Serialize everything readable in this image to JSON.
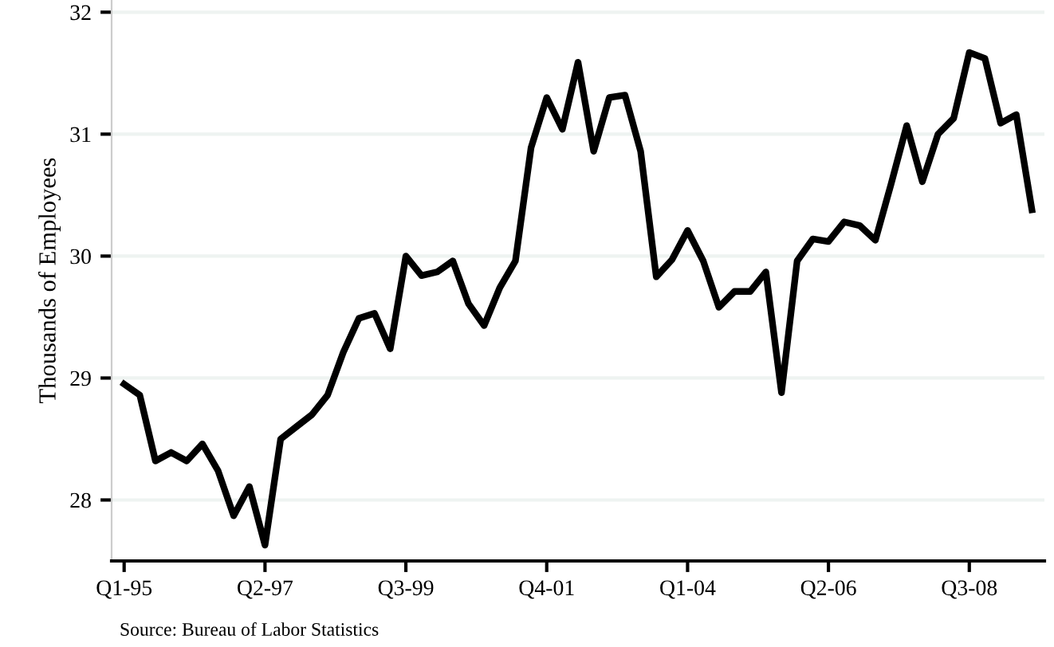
{
  "chart_data": {
    "type": "line",
    "ylabel": "Thousands of Employees",
    "categories": [
      "Q1-95",
      null,
      null,
      null,
      null,
      null,
      null,
      null,
      null,
      "Q2-97",
      null,
      null,
      null,
      null,
      null,
      null,
      null,
      null,
      "Q3-99",
      null,
      null,
      null,
      null,
      null,
      null,
      null,
      null,
      "Q4-01",
      null,
      null,
      null,
      null,
      null,
      null,
      null,
      null,
      "Q1-04",
      null,
      null,
      null,
      null,
      null,
      null,
      null,
      null,
      "Q2-06",
      null,
      null,
      null,
      null,
      null,
      null,
      null,
      null,
      "Q3-08",
      null,
      null,
      null,
      null
    ],
    "series": [
      {
        "color": "#000000",
        "values": [
          28.95,
          28.86,
          28.32,
          28.39,
          28.32,
          28.46,
          28.24,
          27.87,
          28.11,
          27.63,
          28.5,
          28.6,
          28.7,
          28.86,
          29.21,
          29.49,
          29.53,
          29.24,
          30.0,
          29.84,
          29.87,
          29.96,
          29.61,
          29.43,
          29.74,
          29.96,
          30.89,
          31.3,
          31.04,
          31.59,
          30.86,
          31.3,
          31.32,
          30.86,
          29.83,
          29.97,
          30.21,
          29.96,
          29.58,
          29.71,
          29.71,
          29.87,
          28.88,
          29.96,
          30.14,
          30.12,
          30.28,
          30.25,
          30.13,
          30.59,
          31.07,
          30.61,
          31.0,
          31.13,
          31.67,
          31.62,
          31.09,
          31.16,
          30.38
        ]
      }
    ],
    "ylim": [
      27.5,
      32.1
    ],
    "yticks": [
      28,
      29,
      30,
      31,
      32
    ],
    "grid": "y",
    "legend": false,
    "marker": "none",
    "line_style": "solid",
    "annotations": [
      "Source: Bureau of Labor Statistics"
    ]
  }
}
